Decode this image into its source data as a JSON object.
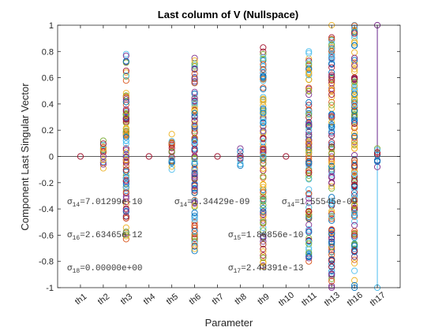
{
  "chart_data": {
    "type": "scatter",
    "title": "Last column of V (Nullspace)",
    "xlabel": "Parameter",
    "ylabel": "Component Last Singular Vector",
    "ylim": [
      -1,
      1
    ],
    "yticks": [
      -1,
      -0.8,
      -0.6,
      -0.4,
      -0.2,
      0,
      0.2,
      0.4,
      0.6,
      0.8,
      1
    ],
    "ytick_labels": [
      "-1",
      "-0.8",
      "-0.6",
      "-0.4",
      "-0.2",
      "0",
      "0.2",
      "0.4",
      "0.6",
      "0.8",
      "1"
    ],
    "categories": [
      "th1",
      "th2",
      "th3",
      "th4",
      "th5",
      "th6",
      "th7",
      "th8",
      "th9",
      "th10",
      "th11",
      "th13",
      "th16",
      "th17"
    ],
    "marker": "open-circle",
    "colors": [
      "#0072BD",
      "#D95319",
      "#EDB120",
      "#7E2F8E",
      "#77AC30",
      "#4DBEEE",
      "#A2142F"
    ],
    "single_points": [
      {
        "category": "th1",
        "value": 0,
        "color": "#A2142F"
      },
      {
        "category": "th4",
        "value": 0,
        "color": "#A2142F"
      },
      {
        "category": "th7",
        "value": 0,
        "color": "#A2142F"
      },
      {
        "category": "th10",
        "value": 0,
        "color": "#A2142F"
      }
    ],
    "column_ranges": [
      {
        "category": "th2",
        "min": -0.09,
        "max": 0.12
      },
      {
        "category": "th3",
        "min": -0.63,
        "max": 0.78
      },
      {
        "category": "th5",
        "min": -0.1,
        "max": 0.17
      },
      {
        "category": "th6",
        "min": -0.72,
        "max": 0.75
      },
      {
        "category": "th8",
        "min": -0.07,
        "max": 0.06
      },
      {
        "category": "th9",
        "min": -0.84,
        "max": 0.83
      },
      {
        "category": "th11",
        "min": -0.8,
        "max": 0.8
      },
      {
        "category": "th13",
        "min": -1.0,
        "max": 1.0
      },
      {
        "category": "th16",
        "min": -1.0,
        "max": 1.0
      },
      {
        "category": "th17",
        "min": -0.08,
        "max": 0.06
      }
    ],
    "highlight_points": [
      {
        "category": "th16",
        "value": -0.43,
        "color": "#4DBEEE"
      },
      {
        "category": "th16",
        "value": 0.39,
        "color": "#4DBEEE"
      },
      {
        "category": "th16",
        "value": 0.57,
        "color": "#77AC30"
      },
      {
        "category": "th17",
        "value": 1.0,
        "color": "#7E2F8E"
      },
      {
        "category": "th17",
        "value": -1.0,
        "color": "#4DBEEE"
      }
    ],
    "vertical_lines": [
      {
        "category": "th17",
        "from": -1.0,
        "to": 1.0,
        "color": "#4DBEEE"
      },
      {
        "category": "th17",
        "from": 0,
        "to": 1.0,
        "color": "#7E2F8E"
      }
    ],
    "annotations": [
      {
        "label": "σ",
        "sub": "14",
        "text": "=7.01299e-10"
      },
      {
        "label": "σ",
        "sub": "14",
        "text": "=1.34429e-09"
      },
      {
        "label": "σ",
        "sub": "14",
        "text": "=1.55545e-09"
      },
      {
        "label": "σ",
        "sub": "16",
        "text": "=2.63465e-12"
      },
      {
        "label": "σ",
        "sub": "15",
        "text": "=1.80856e-10"
      },
      {
        "label": "σ",
        "sub": "18",
        "text": "=0.00000e+00"
      },
      {
        "label": "σ",
        "sub": "17",
        "text": "=2.48391e-13"
      }
    ]
  }
}
